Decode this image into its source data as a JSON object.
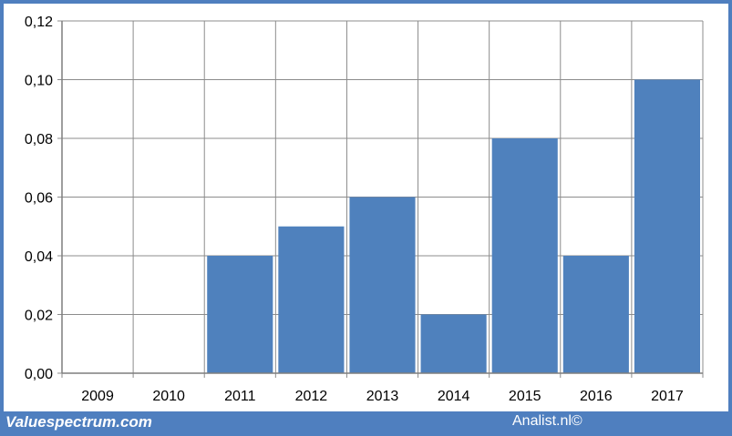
{
  "chart_data": {
    "type": "bar",
    "categories": [
      "2009",
      "2010",
      "2011",
      "2012",
      "2013",
      "2014",
      "2015",
      "2016",
      "2017"
    ],
    "values": [
      0,
      0,
      0.04,
      0.05,
      0.06,
      0.02,
      0.08,
      0.04,
      0.1
    ],
    "ylim": [
      0,
      0.12
    ],
    "yticks": [
      "0,00",
      "0,02",
      "0,04",
      "0,06",
      "0,08",
      "0,10",
      "0,12"
    ],
    "grid": true,
    "bar_color": "#4f81bd",
    "frame_color": "#4f7fbf"
  },
  "footer": {
    "left": "Valuespectrum.com",
    "right": "Analist.nl©"
  }
}
